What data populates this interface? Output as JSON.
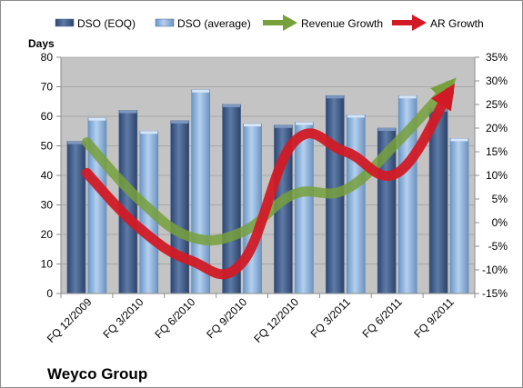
{
  "chart_data": {
    "type": "bar",
    "title": "Weyco Group",
    "ylabel": "Days",
    "categories": [
      "FQ 12/2009",
      "FQ 3/2010",
      "FQ 6/2010",
      "FQ 9/2010",
      "FQ 12/2010",
      "FQ 3/2011",
      "FQ 6/2011",
      "FQ 9/2011"
    ],
    "ylim": [
      0,
      80
    ],
    "y_ticks": [
      "0",
      "10",
      "20",
      "30",
      "40",
      "50",
      "60",
      "70",
      "80"
    ],
    "y2lim": [
      -15,
      35
    ],
    "y2_ticks": [
      "-15%",
      "-10%",
      "-5%",
      "0%",
      "5%",
      "10%",
      "15%",
      "20%",
      "25%",
      "30%",
      "35%"
    ],
    "series": [
      {
        "name": "DSO (EOQ)",
        "type": "bar",
        "axis": "left",
        "values": [
          51.5,
          62,
          58.5,
          64,
          57,
          67,
          56,
          62.5
        ]
      },
      {
        "name": "DSO (average)",
        "type": "bar",
        "axis": "left",
        "values": [
          59.5,
          55,
          69,
          57.5,
          58,
          60.5,
          67,
          52.5
        ]
      },
      {
        "name": "Revenue Growth",
        "type": "line",
        "axis": "right",
        "values": [
          17,
          5,
          -3,
          -2,
          6,
          7,
          17,
          29
        ]
      },
      {
        "name": "AR Growth",
        "type": "line",
        "axis": "right",
        "values": [
          10.5,
          -1,
          -8,
          -8.5,
          17,
          15,
          10.5,
          27.5
        ]
      }
    ],
    "legend_position": "top",
    "grid": false,
    "colors": {
      "plot_background": "#c4c4c4",
      "dso_eoq": "#4a6591",
      "dso_average": "#8eb4df",
      "revenue_growth": "#77a03c",
      "ar_growth": "#d21a26"
    }
  }
}
